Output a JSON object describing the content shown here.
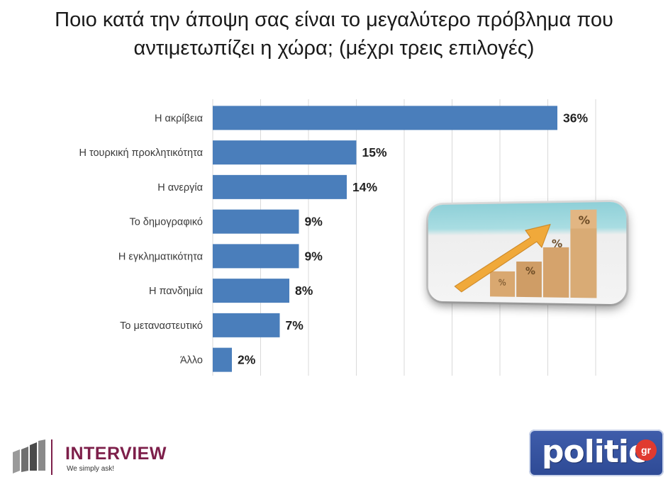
{
  "title": {
    "line1": "Ποιο κατά την άποψη σας είναι το μεγαλύτερο πρόβλημα που",
    "line2": "αντιμετωπίζει η χώρα; (μέχρι τρεις επιλογές)"
  },
  "chart_data": {
    "type": "bar",
    "orientation": "horizontal",
    "categories": [
      "Η ακρίβεια",
      "Η τουρκική προκλητικότητα",
      "Η ανεργία",
      "Το δημογραφικό",
      "Η εγκληματικότητα",
      "Η πανδημία",
      "Το μεταναστευτικό",
      "Άλλο"
    ],
    "values": [
      36,
      15,
      14,
      9,
      9,
      8,
      7,
      2
    ],
    "value_labels": [
      "36%",
      "15%",
      "14%",
      "9%",
      "9%",
      "8%",
      "7%",
      "2%"
    ],
    "xlim": [
      0,
      40
    ],
    "grid": true,
    "bar_color": "#4a7ebb"
  },
  "image": {
    "alt_icon": "percent-growth-arrow-photo"
  },
  "branding": {
    "interview_name": "INTERVIEW",
    "interview_tagline": "We simply ask!",
    "politic_name": "politic",
    "politic_suffix": "gr",
    "interview_color": "#7d1f4a",
    "politic_color": "#3f5dab"
  }
}
